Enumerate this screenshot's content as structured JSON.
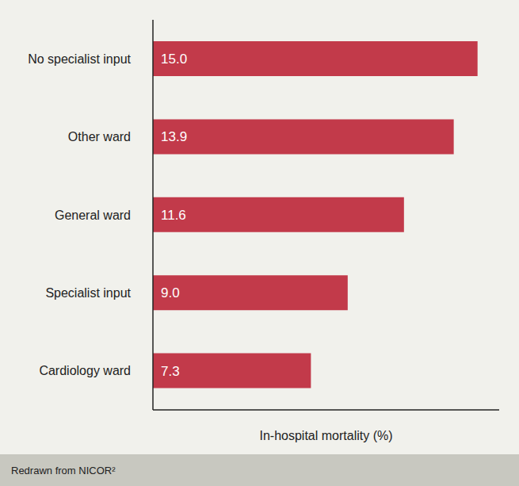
{
  "chart_data": {
    "type": "bar",
    "orientation": "horizontal",
    "categories": [
      "No specialist input",
      "Other ward",
      "General ward",
      "Specialist input",
      "Cardiology ward"
    ],
    "values": [
      15.0,
      13.9,
      11.6,
      9.0,
      7.3
    ],
    "value_labels": [
      "15.0",
      "13.9",
      "11.6",
      "9.0",
      "7.3"
    ],
    "color": "#c23a4a",
    "xlabel": "In-hospital mortality (%)",
    "xlim": [
      0,
      16
    ],
    "data_labels": true,
    "tick_labels": "y",
    "grid": false,
    "footer": "Redrawn from NICOR²"
  }
}
